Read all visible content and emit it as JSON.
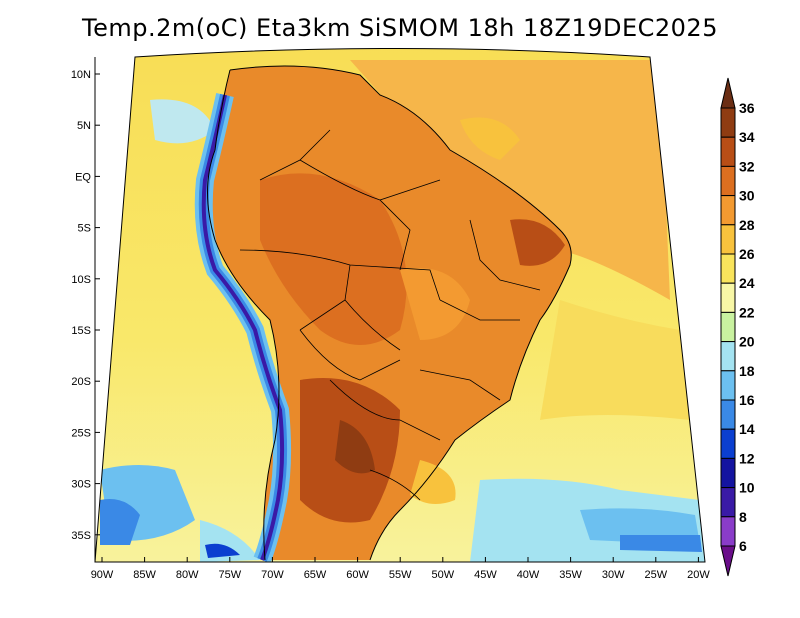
{
  "title": "Temp.2m(oC) Eta3km SiSMOM 18h 18Z19DEC2025",
  "lat_ticks": [
    "10N",
    "5N",
    "EQ",
    "5S",
    "10S",
    "15S",
    "20S",
    "25S",
    "30S",
    "35S"
  ],
  "lon_ticks": [
    "90W",
    "85W",
    "80W",
    "75W",
    "70W",
    "65W",
    "60W",
    "55W",
    "50W",
    "45W",
    "40W",
    "35W",
    "30W",
    "25W",
    "20W"
  ],
  "colorbar": {
    "labels": [
      "36",
      "34",
      "32",
      "30",
      "28",
      "26",
      "24",
      "22",
      "20",
      "18",
      "16",
      "14",
      "12",
      "10",
      "8",
      "6"
    ],
    "colors": [
      "#6b2e14",
      "#8f3c12",
      "#b84e16",
      "#dc6f20",
      "#f39a31",
      "#f8c23d",
      "#f9e45c",
      "#f8f7a6",
      "#c9f2a0",
      "#a4e3f1",
      "#6cc0f0",
      "#3a89e6",
      "#0b3fd0",
      "#1414a0",
      "#3a1aa6",
      "#8a3cc9",
      "#6a0e8a"
    ]
  }
}
